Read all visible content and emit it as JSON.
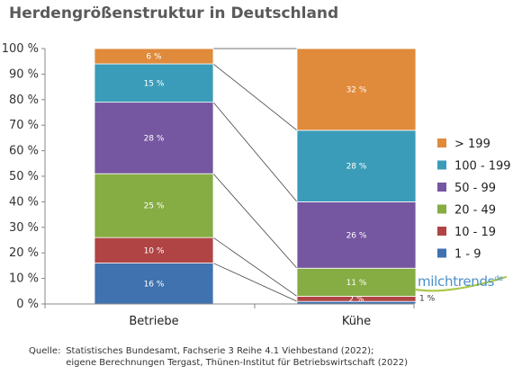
{
  "chart_data": {
    "type": "bar",
    "stacked": true,
    "percent_stacked": true,
    "title": "Herdengrößenstruktur in Deutschland",
    "categories": [
      "Betriebe",
      "Kühe"
    ],
    "ylim": [
      0,
      100
    ],
    "yticks": [
      "0 %",
      "10 %",
      "20 %",
      "30 %",
      "40 %",
      "50 %",
      "60 %",
      "70 %",
      "80 %",
      "90 %",
      "100 %"
    ],
    "legend_position": "right",
    "grid": false,
    "series": [
      {
        "name": "1 - 9",
        "color": "#3f72ae",
        "values": [
          16,
          1
        ],
        "labels": [
          "16 %",
          "1 %"
        ]
      },
      {
        "name": "10 - 19",
        "color": "#b04444",
        "values": [
          10,
          2
        ],
        "labels": [
          "10 %",
          "2 %"
        ]
      },
      {
        "name": "20 - 49",
        "color": "#86ac44",
        "values": [
          25,
          11
        ],
        "labels": [
          "25 %",
          "11 %"
        ]
      },
      {
        "name": "50 - 99",
        "color": "#7556a0",
        "values": [
          28,
          26
        ],
        "labels": [
          "28 %",
          "26 %"
        ]
      },
      {
        "name": "100 - 199",
        "color": "#3a9cb8",
        "values": [
          15,
          28
        ],
        "labels": [
          "15 %",
          "28 %"
        ]
      },
      {
        "name": "> 199",
        "color": "#e08a3c",
        "values": [
          6,
          32
        ],
        "labels": [
          "6 %",
          "32 %"
        ]
      }
    ]
  },
  "logo": {
    "text": "milchtrends",
    "suffix": "de"
  },
  "source": {
    "key": "Quelle:",
    "lines": [
      "Statistisches Bundesamt, Fachserie 3 Reihe 4.1 Viehbestand (2022);",
      "eigene Berechnungen Tergast, Thünen-Institut für Betriebswirtschaft (2022)"
    ]
  }
}
